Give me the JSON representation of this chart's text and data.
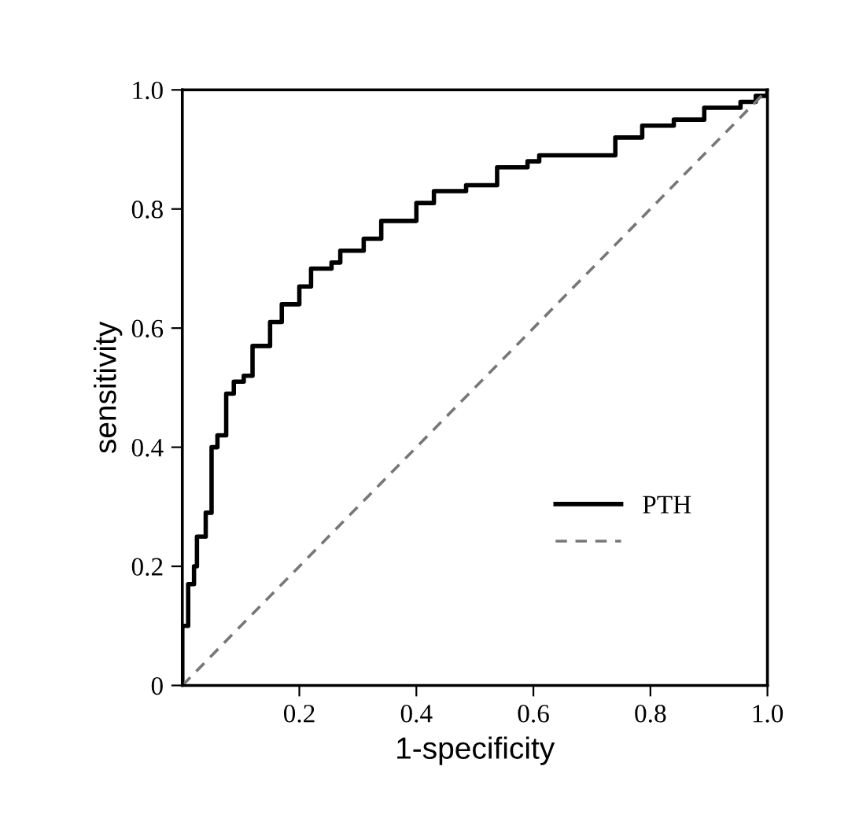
{
  "chart_data": {
    "type": "line",
    "xlabel": "1-specificity",
    "ylabel": "sensitivity",
    "xlim": [
      0,
      1
    ],
    "ylim": [
      0,
      1
    ],
    "xticks": [
      0.2,
      0.4,
      0.6,
      0.8,
      {
        "value": 1.0,
        "label": "1.0"
      }
    ],
    "yticks": [
      0,
      0.2,
      0.4,
      0.6,
      0.8,
      {
        "value": 1.0,
        "label": "1.0"
      }
    ],
    "grid": false,
    "legend": "bottom right",
    "series": [
      {
        "name": "PTH",
        "type": "step",
        "color": "#000000",
        "line_style": "solid",
        "x": [
          0,
          0,
          0.003,
          0.01,
          0.02,
          0.025,
          0.04,
          0.05,
          0.05,
          0.06,
          0.075,
          0.088,
          0.105,
          0.12,
          0.15,
          0.17,
          0.2,
          0.22,
          0.255,
          0.27,
          0.31,
          0.34,
          0.4,
          0.43,
          0.485,
          0.538,
          0.59,
          0.61,
          0.688,
          0.74,
          0.786,
          0.84,
          0.892,
          0.954,
          0.98,
          1.0
        ],
        "values": [
          0,
          0.1,
          0.1,
          0.17,
          0.2,
          0.25,
          0.29,
          0.3,
          0.4,
          0.42,
          0.49,
          0.51,
          0.52,
          0.57,
          0.61,
          0.64,
          0.67,
          0.7,
          0.71,
          0.73,
          0.75,
          0.78,
          0.81,
          0.83,
          0.84,
          0.87,
          0.88,
          0.89,
          0.89,
          0.92,
          0.94,
          0.95,
          0.97,
          0.98,
          0.99,
          1.0
        ]
      },
      {
        "color": "#777777",
        "line_style": "dashed",
        "x": [
          0,
          1
        ],
        "values": [
          0,
          1
        ]
      }
    ]
  }
}
